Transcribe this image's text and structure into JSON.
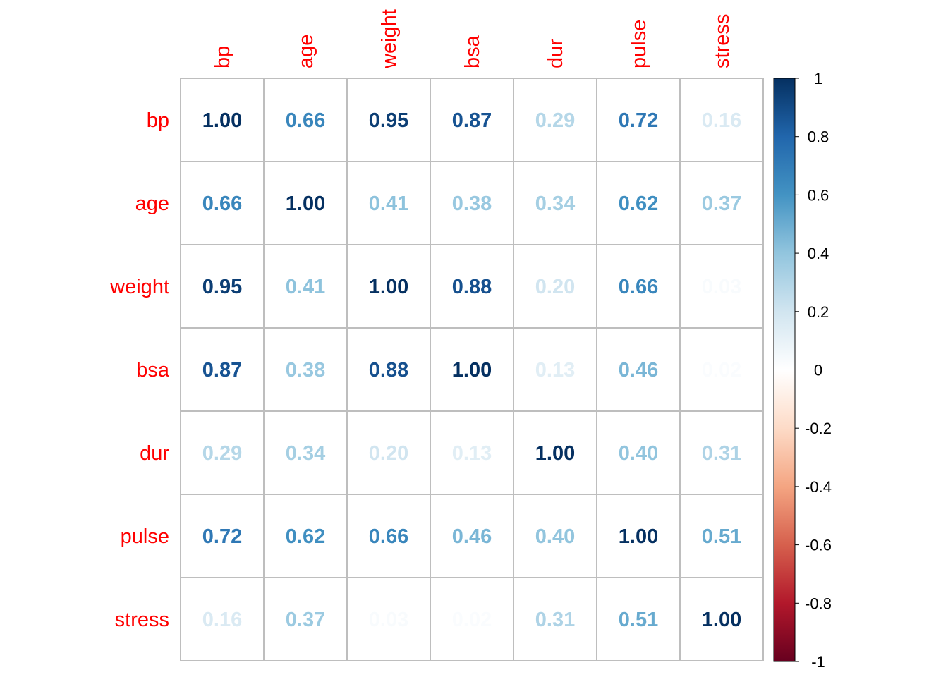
{
  "chart_data": {
    "type": "heatmap",
    "variables": [
      "bp",
      "age",
      "weight",
      "bsa",
      "dur",
      "pulse",
      "stress"
    ],
    "matrix": [
      [
        1.0,
        0.66,
        0.95,
        0.87,
        0.29,
        0.72,
        0.16
      ],
      [
        0.66,
        1.0,
        0.41,
        0.38,
        0.34,
        0.62,
        0.37
      ],
      [
        0.95,
        0.41,
        1.0,
        0.88,
        0.2,
        0.66,
        0.03
      ],
      [
        0.87,
        0.38,
        0.88,
        1.0,
        0.13,
        0.46,
        0.02
      ],
      [
        0.29,
        0.34,
        0.2,
        0.13,
        1.0,
        0.4,
        0.31
      ],
      [
        0.72,
        0.62,
        0.66,
        0.46,
        0.4,
        1.0,
        0.51
      ],
      [
        0.16,
        0.37,
        0.03,
        0.02,
        0.31,
        0.51,
        1.0
      ]
    ],
    "value_format": "2 decimals",
    "color_scale": {
      "range": [
        -1,
        1
      ],
      "ticks": [
        1,
        0.8,
        0.6,
        0.4,
        0.2,
        0,
        -0.2,
        -0.4,
        -0.6,
        -0.8,
        -1
      ],
      "tick_labels": [
        "1",
        "0.8",
        "0.6",
        "0.4",
        "0.2",
        "0",
        "-0.2",
        "-0.4",
        "-0.6",
        "-0.8",
        "-1"
      ],
      "stops": [
        {
          "value": -1.0,
          "color": "#67001F"
        },
        {
          "value": -0.8,
          "color": "#B2182B"
        },
        {
          "value": -0.6,
          "color": "#D6604D"
        },
        {
          "value": -0.4,
          "color": "#F4A582"
        },
        {
          "value": -0.2,
          "color": "#FDDBC7"
        },
        {
          "value": 0.0,
          "color": "#FFFFFF"
        },
        {
          "value": 0.2,
          "color": "#D1E5F0"
        },
        {
          "value": 0.4,
          "color": "#92C5DE"
        },
        {
          "value": 0.6,
          "color": "#4393C3"
        },
        {
          "value": 0.8,
          "color": "#2166AC"
        },
        {
          "value": 1.0,
          "color": "#053061"
        }
      ]
    },
    "label_color": "#FF0000",
    "grid_color": "#BEBEBE",
    "grid": true,
    "legend_placement": "right",
    "title": "",
    "xlabel": "",
    "ylabel": ""
  }
}
